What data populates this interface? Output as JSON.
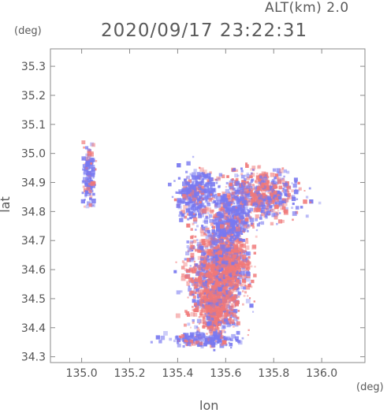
{
  "header": {
    "altitude_label": "ALT(km) 2.0",
    "timestamp": "2020/09/17 23:22:31"
  },
  "chart_data": {
    "type": "heatmap",
    "title": "",
    "xlabel": "lon",
    "ylabel": "lat",
    "x_unit": "(deg)",
    "y_unit": "(deg)",
    "xlim": [
      134.87,
      136.18
    ],
    "ylim": [
      34.28,
      35.36
    ],
    "x_ticks": [
      "135.0",
      "135.2",
      "135.4",
      "135.6",
      "135.8",
      "136.0"
    ],
    "y_ticks": [
      "34.3",
      "34.4",
      "34.5",
      "34.6",
      "34.7",
      "34.8",
      "34.9",
      "35.0",
      "35.1",
      "35.2",
      "35.3"
    ],
    "grid": false,
    "colors": {
      "positive": "#f07878",
      "negative": "#7878f0",
      "frame": "#888888"
    },
    "echo_clusters": [
      {
        "lon": 135.03,
        "lat": 34.92,
        "sigma_lon": 0.012,
        "sigma_lat": 0.05,
        "sign": -1
      },
      {
        "lon": 135.56,
        "lat": 34.58,
        "sigma_lon": 0.06,
        "sigma_lat": 0.09,
        "sign": 0
      },
      {
        "lon": 135.62,
        "lat": 34.62,
        "sigma_lon": 0.04,
        "sigma_lat": 0.05,
        "sign": 1
      },
      {
        "lon": 135.55,
        "lat": 34.48,
        "sigma_lon": 0.04,
        "sigma_lat": 0.05,
        "sign": 1
      },
      {
        "lon": 135.74,
        "lat": 34.86,
        "sigma_lon": 0.08,
        "sigma_lat": 0.04,
        "sign": 0
      },
      {
        "lon": 135.62,
        "lat": 34.78,
        "sigma_lon": 0.04,
        "sigma_lat": 0.05,
        "sign": -1
      },
      {
        "lon": 135.5,
        "lat": 34.36,
        "sigma_lon": 0.07,
        "sigma_lat": 0.012,
        "sign": -1
      },
      {
        "lon": 135.48,
        "lat": 34.86,
        "sigma_lon": 0.04,
        "sigma_lat": 0.04,
        "sign": -1
      }
    ]
  }
}
